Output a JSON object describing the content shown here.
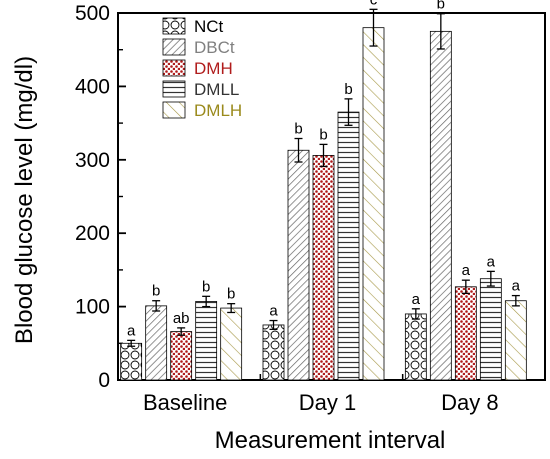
{
  "chart_data": {
    "type": "bar",
    "xlabel": "Measurement interval",
    "ylabel": "Blood glucose level (mg/dl)",
    "ylim": [
      0,
      500
    ],
    "yticks": [
      "0",
      "100",
      "200",
      "300",
      "400",
      "500"
    ],
    "categories": [
      "Baseline",
      "Day 1",
      "Day 8"
    ],
    "series": [
      {
        "name": "NCt",
        "color": "#000000",
        "pattern": "circles",
        "values": [
          50,
          75,
          90
        ],
        "errors": [
          4,
          6,
          7
        ],
        "labels": [
          "a",
          "a",
          "a"
        ]
      },
      {
        "name": "DBCt",
        "color": "#808080",
        "pattern": "diagonal-dense",
        "values": [
          101,
          313,
          475
        ],
        "errors": [
          7,
          16,
          24
        ],
        "labels": [
          "b",
          "b",
          "b"
        ]
      },
      {
        "name": "DMH",
        "color": "#b01c1c",
        "pattern": "red-dots",
        "values": [
          66,
          306,
          127
        ],
        "errors": [
          5,
          15,
          9
        ],
        "labels": [
          "ab",
          "b",
          "a"
        ]
      },
      {
        "name": "DMLL",
        "color": "#333333",
        "pattern": "horizontal-lines",
        "values": [
          107,
          365,
          138
        ],
        "errors": [
          7,
          18,
          10
        ],
        "labels": [
          "b",
          "b",
          "a"
        ]
      },
      {
        "name": "DMLH",
        "color": "#9a8a1c",
        "pattern": "diagonal-sparse",
        "values": [
          98,
          480,
          108
        ],
        "errors": [
          6,
          25,
          7
        ],
        "labels": [
          "b",
          "c",
          "a"
        ]
      }
    ],
    "legend_position": "top-left",
    "grid": false
  }
}
